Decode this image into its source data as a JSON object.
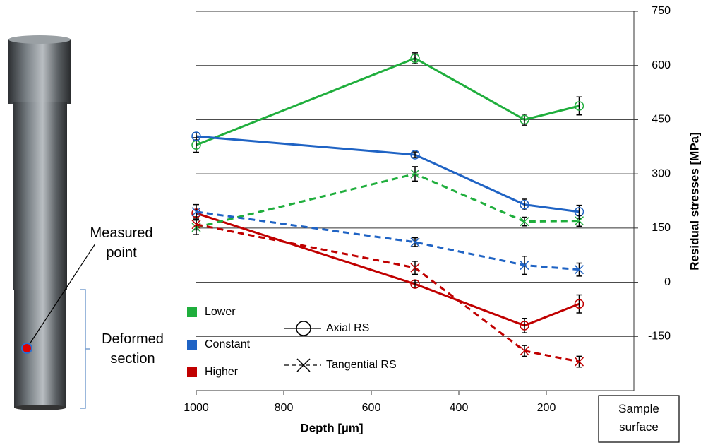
{
  "chart_data": {
    "type": "line",
    "x_label": "Depth [µm]",
    "y_label": "Residual stresses [MPa]",
    "x": [
      1000,
      500,
      250,
      125
    ],
    "xlim": [
      1000,
      0
    ],
    "xticks": [
      1000,
      800,
      600,
      400,
      200
    ],
    "ylim": [
      -300,
      750
    ],
    "yticks": [
      750,
      600,
      450,
      300,
      150,
      0,
      -150
    ],
    "y_axis_side": "right",
    "grid": true,
    "series": [
      {
        "color": "#1fae3c",
        "marker": "circle",
        "dashed": false,
        "values": [
          380,
          620,
          450,
          488
        ],
        "errors": [
          20,
          15,
          15,
          25
        ]
      },
      {
        "color": "#1f63c4",
        "marker": "circle",
        "dashed": false,
        "values": [
          404,
          353,
          215,
          195
        ],
        "errors": [
          10,
          8,
          15,
          18
        ]
      },
      {
        "color": "#c00000",
        "marker": "circle",
        "dashed": false,
        "values": [
          191,
          -5,
          -120,
          -60
        ],
        "errors": [
          10,
          10,
          20,
          25
        ]
      },
      {
        "color": "#1fae3c",
        "marker": "x",
        "dashed": true,
        "values": [
          152,
          300,
          168,
          170
        ],
        "errors": [
          20,
          20,
          12,
          15
        ]
      },
      {
        "color": "#1f63c4",
        "marker": "x",
        "dashed": true,
        "values": [
          195,
          111,
          47,
          35
        ],
        "errors": [
          20,
          12,
          25,
          18
        ]
      },
      {
        "color": "#c00000",
        "marker": "x",
        "dashed": true,
        "values": [
          160,
          40,
          -190,
          -220
        ],
        "errors": [
          15,
          18,
          15,
          15
        ]
      }
    ],
    "color_legend": [
      {
        "label": "Lower",
        "color": "#1fae3c"
      },
      {
        "label": "Constant",
        "color": "#1f63c4"
      },
      {
        "label": "Higher",
        "color": "#c00000"
      }
    ],
    "style_legend": [
      {
        "label": "Axial RS",
        "marker": "circle",
        "dashed": false
      },
      {
        "label": "Tangential RS",
        "marker": "x",
        "dashed": true
      }
    ],
    "annotations": {
      "measured_point": "Measured point",
      "deformed_section": "Deformed section",
      "sample_surface": "Sample surface"
    }
  }
}
